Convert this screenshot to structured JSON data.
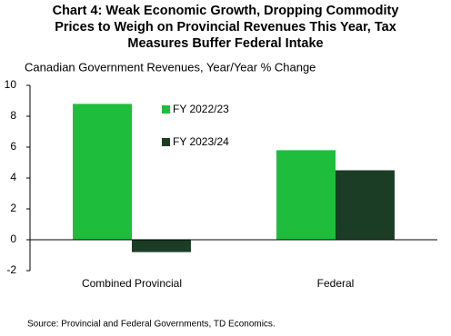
{
  "chart_data": {
    "type": "bar",
    "title": [
      "Chart 4: Weak Economic Growth, Dropping Commodity",
      "Prices to Weigh on Provincial Revenues This Year, Tax",
      "Measures Buffer Federal Intake"
    ],
    "subtitle": "Canadian Government Revenues, Year/Year % Change",
    "categories": [
      "Combined Provincial",
      "Federal"
    ],
    "series": [
      {
        "name": "FY 2022/23",
        "color": "#1fbd3c",
        "values": [
          8.8,
          5.8
        ]
      },
      {
        "name": "FY 2023/24",
        "color": "#1b3d26",
        "values": [
          -0.8,
          4.5
        ]
      }
    ],
    "ylim": [
      -2,
      10
    ],
    "yticks": [
      -2,
      0,
      2,
      4,
      6,
      8,
      10
    ],
    "legend": "upper-center",
    "source": "Source: Provincial and Federal Governments, TD Economics."
  }
}
